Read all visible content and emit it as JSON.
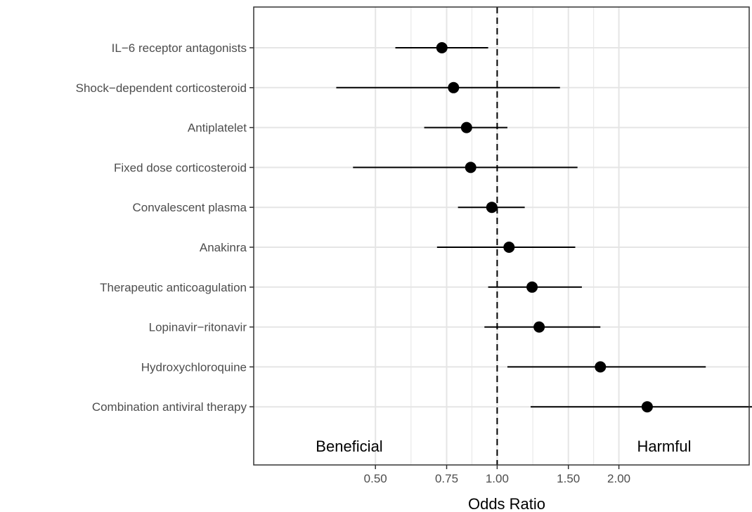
{
  "chart_data": {
    "type": "scatter",
    "subtype": "forest-plot",
    "xscale": "log",
    "xlim": [
      0.25,
      4.2
    ],
    "xlabel": "Odds Ratio",
    "ylabel": "",
    "x_ticks": [
      0.5,
      0.75,
      1.0,
      1.5,
      2.0
    ],
    "x_tick_labels": [
      "0.50",
      "0.75",
      "1.00",
      "1.50",
      "2.00"
    ],
    "reference_line": 1.0,
    "grid": true,
    "legend": "none",
    "categories": [
      "IL−6 receptor antagonists",
      "Shock−dependent corticosteroid",
      "Antiplatelet",
      "Fixed dose corticosteroid",
      "Convalescent plasma",
      "Anakinra",
      "Therapeutic anticoagulation",
      "Lopinavir−ritonavir",
      "Hydroxychloroquine",
      "Combination antiviral therapy"
    ],
    "estimates": [
      0.73,
      0.78,
      0.84,
      0.86,
      0.97,
      1.07,
      1.22,
      1.27,
      1.8,
      2.35
    ],
    "lower": [
      0.56,
      0.4,
      0.66,
      0.44,
      0.8,
      0.71,
      0.95,
      0.93,
      1.06,
      1.21
    ],
    "upper": [
      0.95,
      1.43,
      1.06,
      1.58,
      1.17,
      1.56,
      1.62,
      1.8,
      3.28,
      4.62
    ],
    "annotations": {
      "left": "Beneficial",
      "right": "Harmful"
    },
    "colors": {
      "point": "#000000",
      "line": "#000000",
      "grid": "#e5e5e5",
      "border": "#333333"
    }
  }
}
